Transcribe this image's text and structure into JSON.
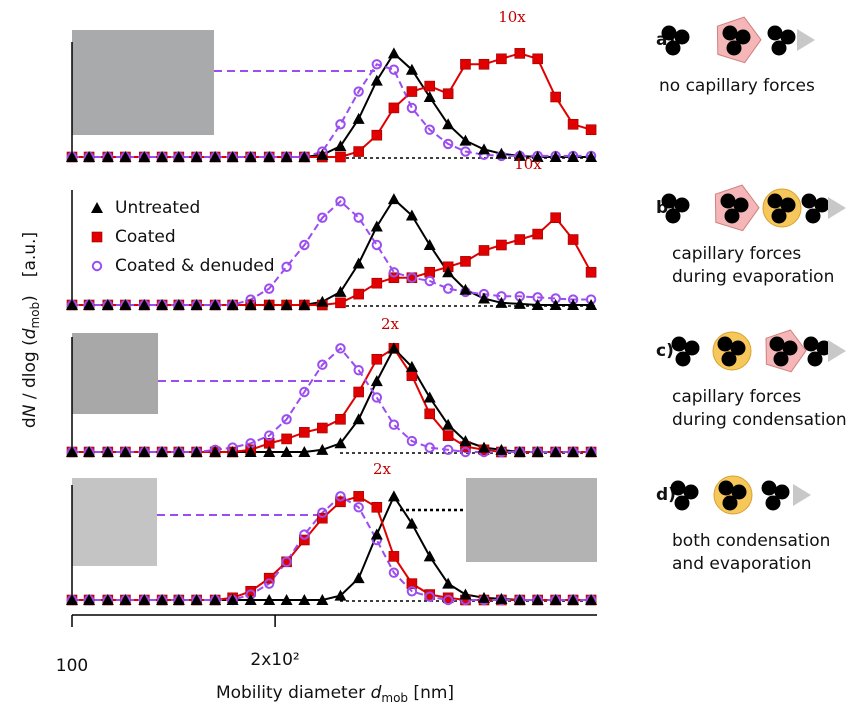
{
  "chart_data": {
    "type": "line",
    "log_x": true,
    "x_label_parts": [
      "Mobility diameter ",
      "d",
      "mob",
      " [nm]"
    ],
    "y_label_parts": [
      "d",
      "N",
      " / dlog (",
      "d",
      "mob",
      ")"
    ],
    "y_unit": "[a.u.]",
    "x": [
      100,
      106,
      113,
      120,
      128,
      136,
      144,
      153,
      163,
      173,
      184,
      196,
      208,
      221,
      235,
      250,
      266,
      283,
      300,
      319,
      339,
      361,
      383,
      408,
      433,
      461,
      490,
      521,
      553,
      588
    ],
    "xlim": [
      100,
      600
    ],
    "xticks": [
      {
        "value": 100,
        "label": "100"
      },
      {
        "value": 200,
        "label": "2x10²"
      },
      3,
      4,
      5,
      6
    ],
    "ylim": [
      0,
      1.1
    ],
    "series": [
      {
        "name": "Untreated",
        "color": "#000000",
        "marker": "triangle",
        "line": "solid"
      },
      {
        "name": "Coated",
        "color": "#e00000",
        "marker": "square",
        "line": "solid"
      },
      {
        "name": "Coated & denuded",
        "color": "#9b4df0",
        "marker": "open-circle",
        "line": "dashed"
      }
    ],
    "panels": [
      {
        "annotation": "10x",
        "values": [
          [
            0,
            0,
            0,
            0,
            0,
            0,
            0,
            0,
            0,
            0,
            0,
            0,
            0,
            0,
            0.02,
            0.1,
            0.35,
            0.7,
            0.95,
            0.8,
            0.55,
            0.3,
            0.15,
            0.07,
            0.03,
            0.01,
            0,
            0,
            0,
            0
          ],
          [
            0,
            0,
            0,
            0,
            0,
            0,
            0,
            0,
            0,
            0,
            0,
            0,
            0,
            0,
            0,
            0,
            0.05,
            0.2,
            0.45,
            0.6,
            0.65,
            0.58,
            0.85,
            0.85,
            0.9,
            0.95,
            0.9,
            0.55,
            0.3,
            0.25
          ],
          [
            0,
            0,
            0,
            0,
            0,
            0,
            0,
            0,
            0,
            0,
            0,
            0,
            0,
            0,
            0.05,
            0.3,
            0.6,
            0.85,
            0.8,
            0.45,
            0.25,
            0.12,
            0.05,
            0.02,
            0.01,
            0.01,
            0.01,
            0.01,
            0.01,
            0.01
          ]
        ]
      },
      {
        "annotation": "10x",
        "values": [
          [
            0,
            0,
            0,
            0,
            0,
            0,
            0,
            0,
            0,
            0,
            0,
            0,
            0,
            0,
            0.03,
            0.12,
            0.38,
            0.72,
            0.97,
            0.82,
            0.55,
            0.3,
            0.14,
            0.06,
            0.02,
            0.01,
            0,
            0,
            0,
            0
          ],
          [
            0,
            0,
            0,
            0,
            0,
            0,
            0,
            0,
            0,
            0,
            0,
            0,
            0,
            0,
            0,
            0.02,
            0.1,
            0.2,
            0.25,
            0.25,
            0.3,
            0.35,
            0.4,
            0.5,
            0.55,
            0.6,
            0.65,
            0.8,
            0.6,
            0.3
          ],
          [
            0,
            0,
            0,
            0,
            0,
            0,
            0,
            0,
            0,
            0,
            0.05,
            0.15,
            0.35,
            0.55,
            0.8,
            0.95,
            0.8,
            0.55,
            0.3,
            0.25,
            0.22,
            0.15,
            0.12,
            0.1,
            0.08,
            0.08,
            0.07,
            0.06,
            0.05,
            0.05
          ]
        ]
      },
      {
        "annotation": "2x",
        "values": [
          [
            0,
            0,
            0,
            0,
            0,
            0,
            0,
            0,
            0,
            0,
            0,
            0,
            0,
            0,
            0.02,
            0.08,
            0.3,
            0.65,
            0.95,
            0.78,
            0.5,
            0.25,
            0.1,
            0.04,
            0.02,
            0,
            0,
            0,
            0,
            0
          ],
          [
            0,
            0,
            0,
            0,
            0,
            0,
            0,
            0,
            0,
            0,
            0.02,
            0.08,
            0.12,
            0.18,
            0.22,
            0.3,
            0.55,
            0.85,
            0.95,
            0.7,
            0.35,
            0.15,
            0.05,
            0.02,
            0,
            0,
            0,
            0,
            0,
            0
          ],
          [
            0,
            0,
            0,
            0,
            0,
            0,
            0,
            0,
            0.02,
            0.04,
            0.08,
            0.15,
            0.3,
            0.55,
            0.8,
            0.95,
            0.75,
            0.5,
            0.25,
            0.1,
            0.04,
            0.02,
            0,
            0,
            0,
            0,
            0,
            0,
            0,
            0
          ]
        ]
      },
      {
        "annotation": "2x",
        "values": [
          [
            0,
            0,
            0,
            0,
            0,
            0,
            0,
            0,
            0,
            0,
            0,
            0,
            0,
            0,
            0,
            0.04,
            0.2,
            0.6,
            0.95,
            0.7,
            0.4,
            0.15,
            0.05,
            0.02,
            0.01,
            0,
            0,
            0,
            0,
            0
          ],
          [
            0,
            0,
            0,
            0,
            0,
            0,
            0,
            0,
            0,
            0.02,
            0.08,
            0.2,
            0.35,
            0.55,
            0.75,
            0.9,
            0.95,
            0.85,
            0.4,
            0.15,
            0.05,
            0.02,
            0,
            0,
            0,
            0,
            0,
            0,
            0,
            0
          ],
          [
            0,
            0,
            0,
            0,
            0,
            0,
            0,
            0,
            0,
            0,
            0.05,
            0.15,
            0.35,
            0.6,
            0.8,
            0.95,
            0.85,
            0.55,
            0.25,
            0.08,
            0.03,
            0,
            0,
            0,
            0,
            0,
            0,
            0,
            0,
            0
          ]
        ]
      }
    ],
    "schematics": [
      {
        "label": "a)",
        "lines": [
          "no capillary forces"
        ]
      },
      {
        "label": "b)",
        "lines": [
          "capillary forces",
          "during evaporation"
        ]
      },
      {
        "label": "c)",
        "lines": [
          "capillary forces",
          "during condensation"
        ]
      },
      {
        "label": "d)",
        "lines": [
          "both condensation",
          "and evaporation"
        ]
      }
    ]
  }
}
